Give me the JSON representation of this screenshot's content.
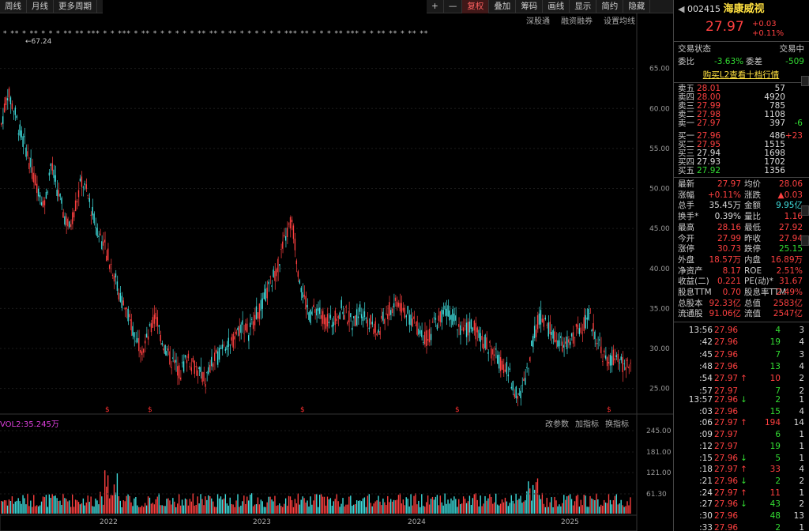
{
  "toolbar": {
    "left": [
      "周线",
      "月线",
      "更多周期"
    ],
    "right": [
      "+",
      "—",
      "复权",
      "叠加",
      "筹码",
      "画线",
      "显示",
      "简约",
      "隐藏"
    ]
  },
  "subtoolbar": [
    "深股通",
    "融资融券",
    "设置均线"
  ],
  "stock": {
    "code": "002415",
    "name": "海康威视",
    "price": "27.97",
    "change": "+0.03",
    "pct": "+0.11%"
  },
  "status": {
    "label": "交易状态",
    "value": "交易中"
  },
  "weibi": {
    "label1": "委比",
    "val1": "-3.63%",
    "label2": "委差",
    "val2": "-509"
  },
  "l2": "购买L2查看十档行情",
  "sell": [
    [
      "卖五",
      "28.01",
      "57",
      ""
    ],
    [
      "卖四",
      "28.00",
      "4920",
      ""
    ],
    [
      "卖三",
      "27.99",
      "785",
      ""
    ],
    [
      "卖二",
      "27.98",
      "1108",
      ""
    ],
    [
      "卖一",
      "27.97",
      "397",
      "-6"
    ]
  ],
  "buy": [
    [
      "买一",
      "27.96",
      "486",
      "+23"
    ],
    [
      "买二",
      "27.95",
      "1515",
      ""
    ],
    [
      "买三",
      "27.94",
      "1698",
      ""
    ],
    [
      "买四",
      "27.93",
      "1702",
      ""
    ],
    [
      "买五",
      "27.92",
      "1356",
      ""
    ]
  ],
  "quote": [
    [
      "最新",
      "27.97",
      "均价",
      "28.06"
    ],
    [
      "涨幅",
      "+0.11%",
      "涨跌",
      "▲0.03"
    ],
    [
      "总手",
      "35.45万",
      "金额",
      "9.95亿"
    ],
    [
      "换手*",
      "0.39%",
      "量比",
      "1.16"
    ],
    [
      "最高",
      "28.16",
      "最低",
      "27.92"
    ],
    [
      "今开",
      "27.99",
      "昨收",
      "27.94"
    ],
    [
      "涨停",
      "30.73",
      "跌停",
      "25.15"
    ],
    [
      "外盘",
      "18.57万",
      "内盘",
      "16.89万"
    ],
    [
      "净资产",
      "8.17",
      "ROE",
      "2.51%"
    ],
    [
      "收益(二)",
      "0.221",
      "PE(动)*",
      "31.67"
    ],
    [
      "股息TTM",
      "0.70",
      "股息率TTM",
      "2.49%"
    ],
    [
      "总股本",
      "92.33亿",
      "总值",
      "2583亿"
    ],
    [
      "流通股",
      "91.06亿",
      "流值",
      "2547亿"
    ]
  ],
  "ticks": [
    [
      "13:56",
      "27.96",
      "4",
      "3",
      ""
    ],
    [
      ":42",
      "27.96",
      "19",
      "4",
      ""
    ],
    [
      ":45",
      "27.96",
      "7",
      "3",
      ""
    ],
    [
      ":48",
      "27.96",
      "13",
      "4",
      ""
    ],
    [
      ":54",
      "27.97",
      "10",
      "2",
      "↑"
    ],
    [
      ":57",
      "27.97",
      "7",
      "2",
      ""
    ],
    [
      "13:57",
      "27.96",
      "2",
      "1",
      "↓"
    ],
    [
      ":03",
      "27.96",
      "15",
      "4",
      ""
    ],
    [
      ":06",
      "27.97",
      "194",
      "14",
      "↑"
    ],
    [
      ":09",
      "27.97",
      "6",
      "1",
      ""
    ],
    [
      ":12",
      "27.97",
      "19",
      "1",
      ""
    ],
    [
      ":15",
      "27.96",
      "5",
      "1",
      "↓"
    ],
    [
      ":18",
      "27.97",
      "33",
      "4",
      "↑"
    ],
    [
      ":21",
      "27.96",
      "2",
      "2",
      "↓"
    ],
    [
      ":24",
      "27.97",
      "11",
      "1",
      "↑"
    ],
    [
      ":27",
      "27.96",
      "43",
      "2",
      "↓"
    ],
    [
      ":30",
      "27.96",
      "48",
      "13",
      ""
    ],
    [
      ":33",
      "27.96",
      "2",
      "1",
      ""
    ]
  ],
  "vol": {
    "label": "VOL2:35.245万",
    "buttons": [
      "改参数",
      "加指标",
      "换指标"
    ]
  },
  "chart_data": {
    "type": "candlestick",
    "title": "",
    "ylim": [
      22,
      70
    ],
    "yticks": [
      "65.00",
      "60.00",
      "55.00",
      "50.00",
      "45.00",
      "40.00",
      "35.00",
      "30.00",
      "25.00"
    ],
    "max_label": "67.24",
    "xlabels": [
      "2022",
      "2023",
      "2024",
      "2025"
    ],
    "vol_yticks": [
      "245.00",
      "181.00",
      "121.00",
      "61.30"
    ],
    "close": [
      58,
      62,
      60,
      57,
      55,
      52,
      50,
      48,
      53,
      50,
      47,
      45,
      48,
      51,
      49,
      46,
      44,
      42,
      40,
      37,
      35,
      33,
      31,
      30,
      32,
      34,
      31,
      29,
      28,
      27,
      29,
      28,
      27,
      26,
      28,
      29,
      31,
      30,
      32,
      33,
      32,
      34,
      35,
      37,
      39,
      41,
      44,
      46,
      40,
      36,
      34,
      35,
      34,
      33,
      34,
      35,
      34,
      33,
      35,
      34,
      33,
      32,
      34,
      35,
      36,
      35,
      34,
      33,
      32,
      31,
      33,
      34,
      35,
      34,
      33,
      32,
      33,
      32,
      31,
      30,
      29,
      28,
      27,
      25,
      24,
      27,
      31,
      34,
      33,
      32,
      31,
      30,
      31,
      32,
      33,
      34,
      32,
      30,
      28,
      29,
      28,
      28,
      27.97
    ]
  }
}
